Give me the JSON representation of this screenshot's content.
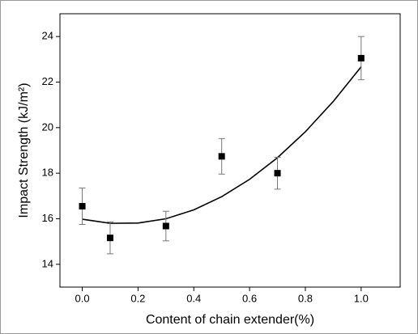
{
  "chart_data": {
    "type": "scatter",
    "x_label": "Content of chain extender(%)",
    "y_label": "Impact Strength (kJ/m²)",
    "x": [
      0.0,
      0.1,
      0.3,
      0.5,
      0.7,
      1.0
    ],
    "series": [
      {
        "color": "#000000",
        "values": [
          16.55,
          15.16,
          15.68,
          18.74,
          18.0,
          23.05
        ],
        "errors": [
          0.8,
          0.7,
          0.65,
          0.78,
          0.7,
          0.95
        ]
      }
    ],
    "fit": {
      "color": "#000000",
      "x": [
        0,
        0.1,
        0.2,
        0.3,
        0.4,
        0.5,
        0.6,
        0.7,
        0.8,
        0.9,
        1.0
      ],
      "values": [
        15.98,
        15.8,
        15.81,
        16.0,
        16.39,
        16.97,
        17.73,
        18.68,
        19.82,
        21.15,
        22.67
      ]
    },
    "xlim": [
      -0.08,
      1.14
    ],
    "ylim": [
      13,
      25
    ],
    "xticks": [
      {
        "value": 0,
        "label": "0.0"
      },
      {
        "value": 0.2,
        "label": "0.2"
      },
      {
        "value": 0.4,
        "label": "0.4"
      },
      {
        "value": 0.6,
        "label": "0.6"
      },
      {
        "value": 0.8,
        "label": "0.8"
      },
      {
        "value": 1,
        "label": "1.0"
      }
    ],
    "yticks": [
      14,
      16,
      18,
      20,
      22,
      24
    ]
  }
}
